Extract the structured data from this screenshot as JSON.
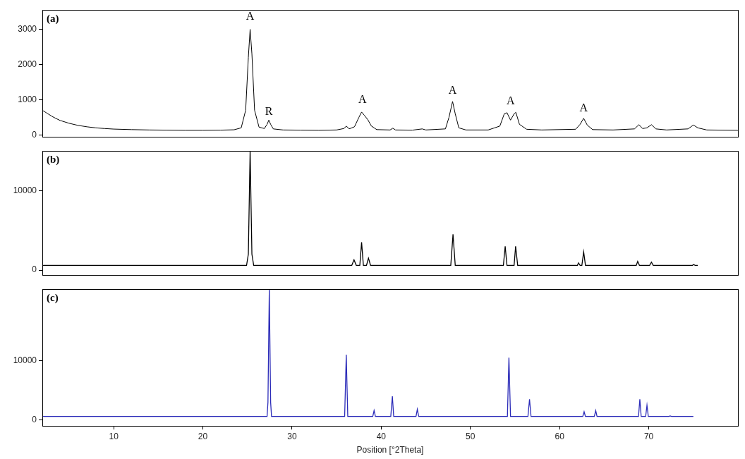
{
  "chart_data": [
    {
      "type": "line",
      "title": "(a)",
      "color": "#000000",
      "grid": false,
      "tick_labels": "y",
      "line_style": "solid",
      "marker": "none",
      "xlim": [
        2,
        80
      ],
      "ylim": [
        -50,
        3550
      ],
      "yticks": [
        0,
        1000,
        2000,
        3000
      ],
      "x": [
        2.0,
        2.5,
        3,
        3.5,
        4,
        5,
        6,
        7,
        8,
        9,
        10,
        12,
        14,
        16,
        18,
        20,
        22,
        23.5,
        24.3,
        24.8,
        25.1,
        25.3,
        25.5,
        25.8,
        26.3,
        26.9,
        27.2,
        27.4,
        27.6,
        27.9,
        29,
        31,
        33,
        35,
        35.8,
        36.1,
        36.4,
        37.0,
        37.5,
        37.8,
        38.1,
        38.5,
        38.9,
        39.5,
        41,
        41.3,
        41.6,
        43.5,
        44.6,
        45,
        47.2,
        47.6,
        48.0,
        48.3,
        48.7,
        49.5,
        52,
        53.3,
        53.8,
        54.1,
        54.5,
        54.9,
        55.1,
        55.5,
        56.3,
        58,
        61.8,
        62.3,
        62.7,
        63.1,
        63.7,
        66,
        68.4,
        68.9,
        69.3,
        69.8,
        70.3,
        70.8,
        72,
        74.4,
        75.0,
        75.5,
        76.5,
        80
      ],
      "values": [
        700,
        620,
        540,
        470,
        410,
        330,
        270,
        230,
        200,
        180,
        165,
        150,
        140,
        135,
        130,
        130,
        135,
        145,
        200,
        700,
        2200,
        3000,
        2300,
        700,
        220,
        180,
        300,
        420,
        300,
        170,
        140,
        135,
        130,
        140,
        180,
        250,
        170,
        230,
        500,
        650,
        560,
        430,
        250,
        150,
        140,
        190,
        140,
        135,
        170,
        140,
        170,
        500,
        950,
        600,
        200,
        140,
        140,
        250,
        600,
        630,
        420,
        600,
        640,
        300,
        160,
        140,
        160,
        300,
        470,
        280,
        150,
        140,
        170,
        290,
        180,
        200,
        290,
        170,
        140,
        170,
        280,
        200,
        140,
        130
      ],
      "annotations": [
        {
          "text": "A",
          "x": 25.3,
          "y": 3350
        },
        {
          "text": "R",
          "x": 27.4,
          "y": 650
        },
        {
          "text": "A",
          "x": 37.9,
          "y": 1000
        },
        {
          "text": "A",
          "x": 48.0,
          "y": 1250
        },
        {
          "text": "A",
          "x": 54.5,
          "y": 950
        },
        {
          "text": "A",
          "x": 62.7,
          "y": 750
        }
      ]
    },
    {
      "type": "line",
      "title": "(b)",
      "color": "#000000",
      "grid": false,
      "tick_labels": "y",
      "line_style": "solid",
      "marker": "none",
      "xlim": [
        2,
        80
      ],
      "ylim": [
        -600,
        15000
      ],
      "yticks": [
        0,
        10000
      ],
      "x": [
        2,
        24.9,
        25.1,
        25.3,
        25.5,
        25.7,
        36.7,
        36.95,
        37.2,
        37.6,
        37.8,
        38.0,
        38.35,
        38.57,
        38.8,
        47.8,
        48.05,
        48.3,
        53.7,
        53.9,
        54.1,
        54.9,
        55.07,
        55.3,
        62.0,
        62.12,
        62.3,
        62.5,
        62.7,
        62.9,
        68.6,
        68.76,
        68.95,
        70.1,
        70.3,
        70.5,
        74.9,
        75.03,
        75.2,
        75.5
      ],
      "values": [
        600,
        600,
        2000,
        15000,
        2000,
        600,
        600,
        1300,
        600,
        600,
        3500,
        600,
        600,
        1500,
        600,
        600,
        4500,
        600,
        600,
        3000,
        600,
        600,
        3000,
        600,
        600,
        900,
        600,
        600,
        2300,
        600,
        600,
        1100,
        600,
        600,
        1000,
        600,
        600,
        700,
        600,
        600
      ]
    },
    {
      "type": "line",
      "title": "(c)",
      "color": "#2a2ab8",
      "grid": false,
      "line_style": "solid",
      "marker": "none",
      "x_label": "Position [°2Theta]",
      "xlim": [
        2,
        80
      ],
      "xticks": [
        10,
        20,
        30,
        40,
        50,
        60,
        70
      ],
      "ylim": [
        -1000,
        22000
      ],
      "yticks": [
        0,
        10000
      ],
      "x": [
        2,
        27.2,
        27.3,
        27.45,
        27.6,
        27.7,
        35.9,
        36.08,
        36.25,
        39.05,
        39.2,
        39.35,
        41.07,
        41.25,
        41.4,
        43.9,
        44.05,
        44.2,
        54.15,
        54.32,
        54.5,
        56.45,
        56.63,
        56.8,
        62.6,
        62.75,
        62.9,
        63.9,
        64.05,
        64.2,
        68.85,
        69.0,
        69.15,
        69.65,
        69.8,
        69.95,
        72.25,
        72.4,
        72.55,
        74.5,
        75
      ],
      "values": [
        600,
        600,
        3000,
        22000,
        3000,
        600,
        600,
        11000,
        600,
        600,
        1600,
        600,
        600,
        4000,
        600,
        600,
        1800,
        600,
        600,
        10500,
        600,
        600,
        3500,
        600,
        600,
        1400,
        600,
        600,
        1600,
        600,
        600,
        3500,
        600,
        600,
        2500,
        600,
        600,
        700,
        600,
        600,
        600
      ]
    }
  ]
}
